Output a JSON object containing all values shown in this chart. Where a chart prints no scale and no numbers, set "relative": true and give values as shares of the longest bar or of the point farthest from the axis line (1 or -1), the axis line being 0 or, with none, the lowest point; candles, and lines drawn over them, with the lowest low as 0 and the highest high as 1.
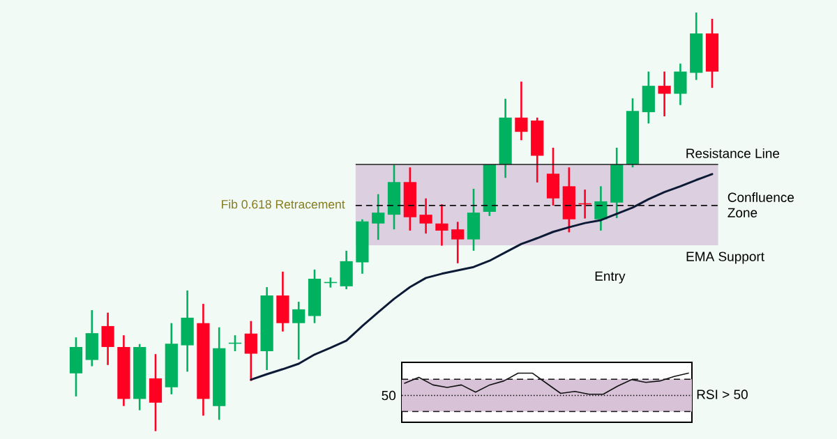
{
  "chart_data": [
    {
      "type": "candlestick",
      "relative": true,
      "categories": [
        null,
        null,
        null,
        null,
        null,
        null,
        null,
        null,
        null,
        null,
        null,
        null,
        null,
        null,
        null,
        null,
        null,
        null,
        null,
        null,
        null,
        null,
        null,
        null,
        null,
        null,
        null,
        null,
        null,
        null,
        null,
        null,
        null,
        null,
        null,
        null,
        null,
        null,
        null,
        null,
        null
      ],
      "ohlc": [
        [
          0.138,
          0.224,
          0.083,
          0.201
        ],
        [
          0.17,
          0.289,
          0.155,
          0.234
        ],
        [
          0.251,
          0.283,
          0.158,
          0.201
        ],
        [
          0.201,
          0.229,
          0.06,
          0.077
        ],
        [
          0.077,
          0.208,
          0.05,
          0.201
        ],
        [
          0.126,
          0.184,
          0,
          0.068
        ],
        [
          0.105,
          0.258,
          0.088,
          0.209
        ],
        [
          0.205,
          0.336,
          0.142,
          0.271
        ],
        [
          0.258,
          0.304,
          0.037,
          0.077
        ],
        [
          0.06,
          0.248,
          0.027,
          0.198
        ],
        [
          0.21,
          0.229,
          0.191,
          0.21
        ],
        [
          0.233,
          0.263,
          0.12,
          0.185
        ],
        [
          0.191,
          0.344,
          0.146,
          0.324
        ],
        [
          0.324,
          0.381,
          0.238,
          0.258
        ],
        [
          0.258,
          0.309,
          0.171,
          0.291
        ],
        [
          0.275,
          0.386,
          0.258,
          0.364
        ],
        [
          0.355,
          0.367,
          0.343,
          0.355
        ],
        [
          0.346,
          0.431,
          0.339,
          0.406
        ],
        [
          0.403,
          0.506,
          0.376,
          0.501
        ],
        [
          0.496,
          0.566,
          0.457,
          0.522
        ],
        [
          0.517,
          0.636,
          0.482,
          0.595
        ],
        [
          0.595,
          0.63,
          0.479,
          0.511
        ],
        [
          0.517,
          0.556,
          0.472,
          0.496
        ],
        [
          0.496,
          0.542,
          0.443,
          0.479
        ],
        [
          0.482,
          0.5,
          0.401,
          0.458
        ],
        [
          0.458,
          0.579,
          0.431,
          0.522
        ],
        [
          0.524,
          0.637,
          0.514,
          0.637
        ],
        [
          0.637,
          0.794,
          0.605,
          0.749
        ],
        [
          0.749,
          0.835,
          0.695,
          0.715
        ],
        [
          0.742,
          0.749,
          0.594,
          0.658
        ],
        [
          0.615,
          0.677,
          0.539,
          0.556
        ],
        [
          0.585,
          0.63,
          0.475,
          0.506
        ],
        [
          0.543,
          0.577,
          0.508,
          0.543
        ],
        [
          0.506,
          0.585,
          0.479,
          0.549
        ],
        [
          0.546,
          0.677,
          0.509,
          0.637
        ],
        [
          0.637,
          0.795,
          0.63,
          0.765
        ],
        [
          0.762,
          0.859,
          0.735,
          0.825
        ],
        [
          0.825,
          0.859,
          0.752,
          0.806
        ],
        [
          0.806,
          0.878,
          0.779,
          0.859
        ],
        [
          0.856,
          1,
          0.839,
          0.95
        ],
        [
          0.95,
          0.985,
          0.82,
          0.859
        ]
      ],
      "colors": [
        "#00b25f",
        "#00b25f",
        "#ff0022",
        "#ff0022",
        "#00b25f",
        "#ff0022",
        "#00b25f",
        "#00b25f",
        "#ff0022",
        "#00b25f",
        "#00b25f",
        "#ff0022",
        "#00b25f",
        "#ff0022",
        "#00b25f",
        "#00b25f",
        "#00b25f",
        "#00b25f",
        "#00b25f",
        "#00b25f",
        "#00b25f",
        "#ff0022",
        "#ff0022",
        "#ff0022",
        "#ff0022",
        "#00b25f",
        "#00b25f",
        "#00b25f",
        "#ff0022",
        "#ff0022",
        "#ff0022",
        "#ff0022",
        "#ff0022",
        "#00b25f",
        "#00b25f",
        "#00b25f",
        "#00b25f",
        "#ff0022",
        "#00b25f",
        "#00b25f",
        "#ff0022"
      ],
      "series": [
        {
          "type": "line",
          "color": "#0c1a36",
          "values": [
            null,
            null,
            null,
            null,
            null,
            null,
            null,
            null,
            null,
            null,
            null,
            0.123,
            0.136,
            0.148,
            0.161,
            0.183,
            0.199,
            0.216,
            0.251,
            0.284,
            0.316,
            0.344,
            0.366,
            0.376,
            0.384,
            0.392,
            0.407,
            0.427,
            0.447,
            0.461,
            0.476,
            0.487,
            0.497,
            0.504,
            0.519,
            0.534,
            0.554,
            0.571,
            0.585,
            0.6,
            0.614
          ]
        }
      ],
      "ref_lines": [
        {
          "axis": "y",
          "value": 0.637,
          "label": "Resistance Line",
          "color": "#1f1f1f",
          "line_style": "solid"
        },
        {
          "axis": "y",
          "value": 0.539,
          "label": "Fib 0.618 Retracement",
          "color": "#111111",
          "line_style": "dashed"
        }
      ],
      "bands": [
        {
          "axis": "y",
          "from": 0.444,
          "to": 0.637,
          "label": "Confluence Zone",
          "color": "#dccfdf"
        }
      ],
      "annotations": [
        "EMA Support",
        "Entry"
      ]
    },
    {
      "type": "line",
      "relative": true,
      "categories": [
        null,
        null,
        null,
        null,
        null,
        null,
        null,
        null,
        null,
        null,
        null,
        null,
        null,
        null,
        null,
        null,
        null,
        null,
        null,
        null,
        null
      ],
      "series": [
        {
          "color": "#111111",
          "values": [
            0.52,
            0.8,
            0.44,
            0.32,
            0.44,
            0.1,
            0.44,
            0.63,
            1,
            1,
            0.52,
            0.04,
            0.13,
            0,
            0,
            0.38,
            0.69,
            0.56,
            0.63,
            0.84,
            1
          ]
        }
      ],
      "ref_lines": [
        {
          "axis": "y",
          "value": 0.71,
          "color": "#111111",
          "line_style": "dashed"
        },
        {
          "axis": "y",
          "value": -0.06,
          "color": "#111111",
          "line_style": "dotted"
        },
        {
          "axis": "y",
          "value": -0.82,
          "color": "#111111",
          "line_style": "dashed"
        }
      ],
      "bands": [
        {
          "axis": "y",
          "from": -0.82,
          "to": 0.71,
          "color": "#d8c2d8"
        }
      ],
      "annotations": [
        "50",
        "RSI > 50"
      ]
    }
  ]
}
